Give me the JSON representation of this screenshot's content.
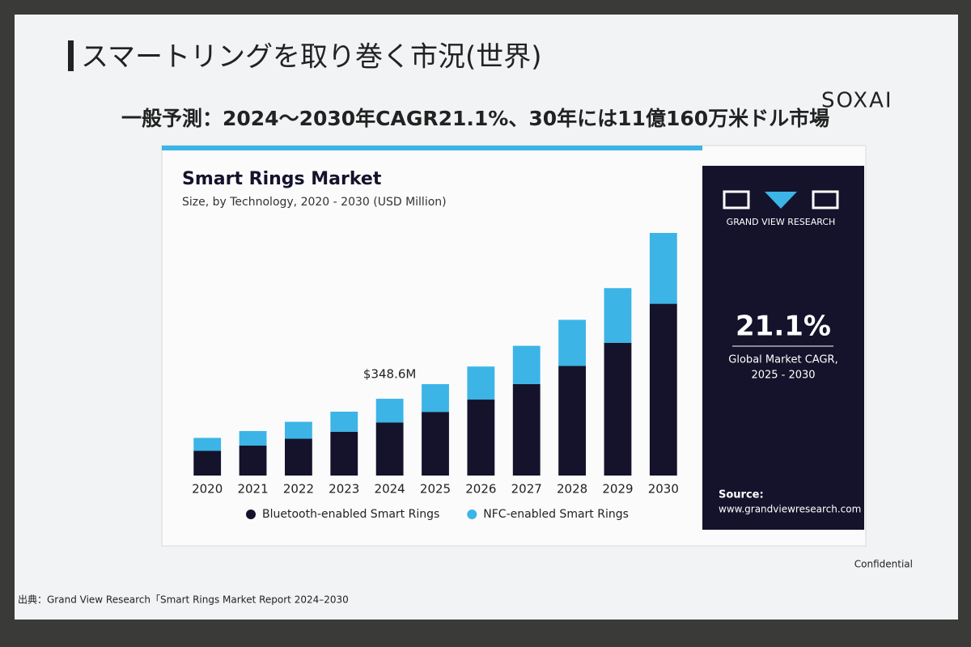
{
  "slide": {
    "heading": "スマートリングを取り巻く市況(世界)",
    "subheading": "一般予測：2024～2030年CAGR21.1%、30年には11億160万米ドル市場",
    "logo": "SOXAI",
    "footer_source": "出典：Grand View Research「Smart Rings Market Report 2024–2030",
    "confidential": "Confidential",
    "panel": {
      "brand": "GRAND VIEW RESEARCH",
      "cagr": "21.1%",
      "cagr_caption_1": "Global Market CAGR,",
      "cagr_caption_2": "2025 - 2030",
      "source_label": "Source:",
      "source_url": "www.grandviewresearch.com"
    }
  },
  "chart_data": {
    "type": "stacked_bar",
    "title": "Smart Rings Market",
    "subtitle": "Size, by Technology, 2020 - 2030 (USD Million)",
    "categories": [
      "2020",
      "2021",
      "2022",
      "2023",
      "2024",
      "2025",
      "2026",
      "2027",
      "2028",
      "2029",
      "2030"
    ],
    "series": [
      {
        "name": "Bluetooth-enabled Smart Rings",
        "color": "#14132b",
        "values": [
          112,
          136,
          167,
          199,
          240.5,
          289,
          345,
          415,
          498,
          603,
          780
        ]
      },
      {
        "name": "NFC-enabled Smart Rings",
        "color": "#3cb4e6",
        "values": [
          59,
          66,
          77,
          91,
          108.1,
          126,
          150,
          174,
          209,
          248,
          321.6
        ]
      }
    ],
    "annotations": [
      {
        "category": "2024",
        "value": 348.6,
        "text": "$348.6M"
      }
    ]
  }
}
